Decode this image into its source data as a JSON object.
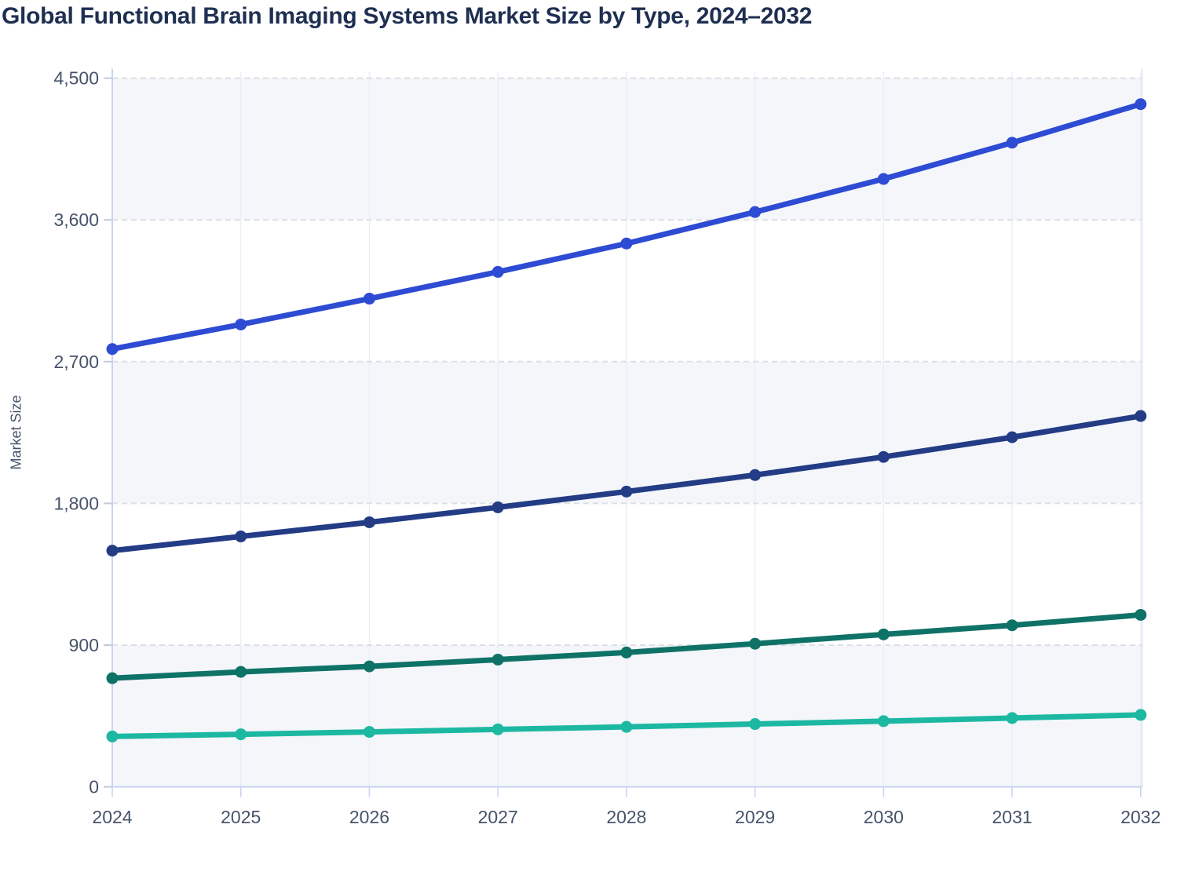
{
  "header": {
    "title": "Global Functional Brain Imaging Systems Market Size by Type, 2024–2032"
  },
  "chart_data": {
    "type": "line",
    "title": "Global Functional Brain Imaging Systems Market Size by Type, 2024–2032",
    "xlabel": "",
    "ylabel": "Market Size",
    "legend": "none",
    "grid": "horizontal-dashed",
    "ylim": [
      0,
      4500
    ],
    "x_labels": [
      "2024",
      "2025",
      "2026",
      "2027",
      "2028",
      "2029",
      "2030",
      "2031",
      "2032"
    ],
    "y_ticks": [
      {
        "value": 0,
        "label": "0"
      },
      {
        "value": 900,
        "label": "900"
      },
      {
        "value": 1800,
        "label": "1,800"
      },
      {
        "value": 2700,
        "label": "2,700"
      },
      {
        "value": 3600,
        "label": "3,600"
      },
      {
        "value": 4500,
        "label": "4,500"
      }
    ],
    "shaded_bands": [
      [
        0,
        900
      ],
      [
        1800,
        2700
      ],
      [
        3600,
        4500
      ]
    ],
    "series": [
      {
        "id": "series-1",
        "color_name": "royal-blue",
        "color": "#2e4bd3",
        "values": [
          2780,
          2936,
          3100,
          3270,
          3450,
          3650,
          3860,
          4090,
          4335
        ]
      },
      {
        "id": "series-2",
        "color_name": "navy",
        "color": "#233c85",
        "values": [
          1500,
          1590,
          1680,
          1775,
          1875,
          1980,
          2095,
          2220,
          2355
        ]
      },
      {
        "id": "series-3",
        "color_name": "dark-green",
        "color": "#0f7267",
        "values": [
          690,
          730,
          765,
          808,
          853,
          909,
          968,
          1026,
          1092
        ]
      },
      {
        "id": "series-4",
        "color_name": "teal",
        "color": "#1cb8a2",
        "values": [
          320,
          334,
          349,
          365,
          381,
          399,
          417,
          437,
          457
        ]
      }
    ],
    "colors": {
      "band_fill": "#f4f6fa",
      "gridline": "#dcdfe4",
      "axis_line": "#c9d4f0",
      "y_tick_mark": "#c3cad6",
      "tick_label": "#46536a",
      "title_text": "#1e2f52"
    }
  }
}
